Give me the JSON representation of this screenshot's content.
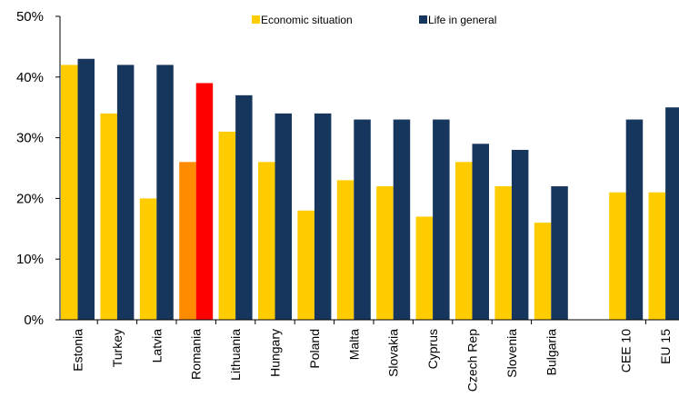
{
  "chart_data": {
    "type": "bar",
    "title": "",
    "xlabel": "",
    "ylabel": "",
    "ylim": [
      0,
      50
    ],
    "yticks": [
      "0%",
      "10%",
      "20%",
      "30%",
      "40%",
      "50%"
    ],
    "grid": false,
    "legend_position": "top",
    "categories": [
      "Estonia",
      "Turkey",
      "Latvia",
      "Romania",
      "Lithuania",
      "Hungary",
      "Poland",
      "Malta",
      "Slovakia",
      "Cyprus",
      "Czech Rep",
      "Slovenia",
      "Bulgaria",
      "CEE 10",
      "EU 15"
    ],
    "series": [
      {
        "name": "Economic situation",
        "color": "#FFCC00",
        "values": [
          42,
          34,
          20,
          26,
          31,
          26,
          18,
          23,
          22,
          17,
          26,
          22,
          16,
          21,
          21
        ]
      },
      {
        "name": "Life in general",
        "color": "#17365D",
        "values": [
          43,
          42,
          42,
          39,
          37,
          34,
          34,
          33,
          33,
          33,
          29,
          28,
          22,
          33,
          35
        ]
      }
    ],
    "highlight": {
      "category": "Romania",
      "colors": [
        "#FF8C00",
        "#FF0000"
      ]
    }
  }
}
